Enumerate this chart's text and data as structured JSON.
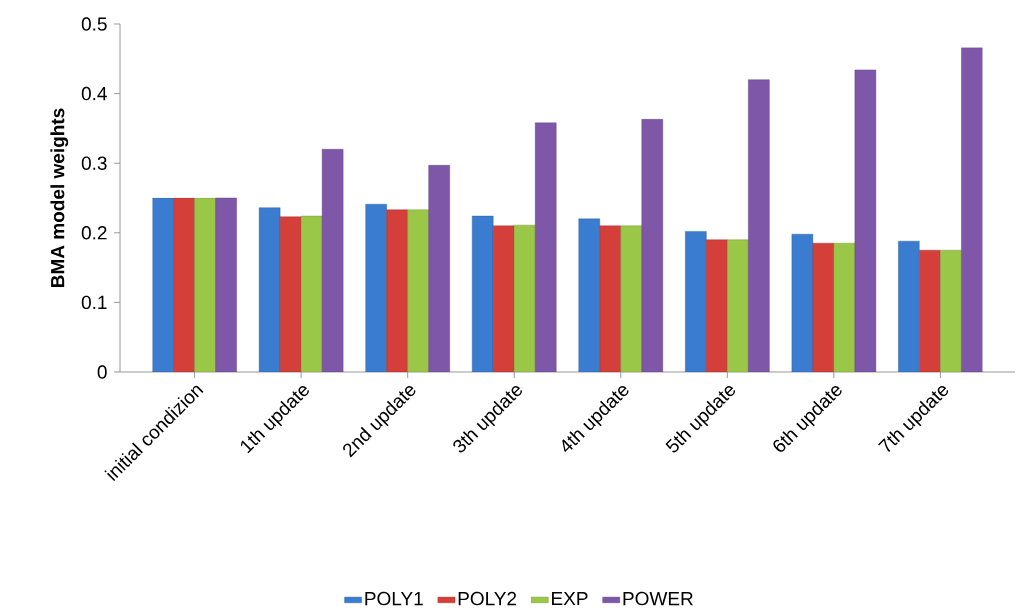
{
  "chart_data": {
    "type": "bar",
    "ylabel": "BMA model weights",
    "categories": [
      "initial condizion",
      "1th update",
      "2nd update",
      "3th update",
      "4th update",
      "5th update",
      "6th update",
      "7th update"
    ],
    "series": [
      {
        "name": "POLY1",
        "color": "#3a7dd0",
        "values": [
          0.25,
          0.236,
          0.241,
          0.224,
          0.22,
          0.202,
          0.198,
          0.188
        ]
      },
      {
        "name": "POLY2",
        "color": "#d43f3a",
        "values": [
          0.25,
          0.223,
          0.233,
          0.21,
          0.21,
          0.19,
          0.185,
          0.175
        ]
      },
      {
        "name": "EXP",
        "color": "#9bc748",
        "values": [
          0.25,
          0.224,
          0.233,
          0.211,
          0.21,
          0.19,
          0.185,
          0.175
        ]
      },
      {
        "name": "POWER",
        "color": "#7e57a8",
        "values": [
          0.25,
          0.32,
          0.297,
          0.358,
          0.363,
          0.42,
          0.434,
          0.466
        ]
      }
    ],
    "ylim": [
      0,
      0.5
    ],
    "yticks": [
      0,
      0.1,
      0.2,
      0.3,
      0.4,
      0.5
    ],
    "grid": false,
    "legend": "bottom"
  }
}
